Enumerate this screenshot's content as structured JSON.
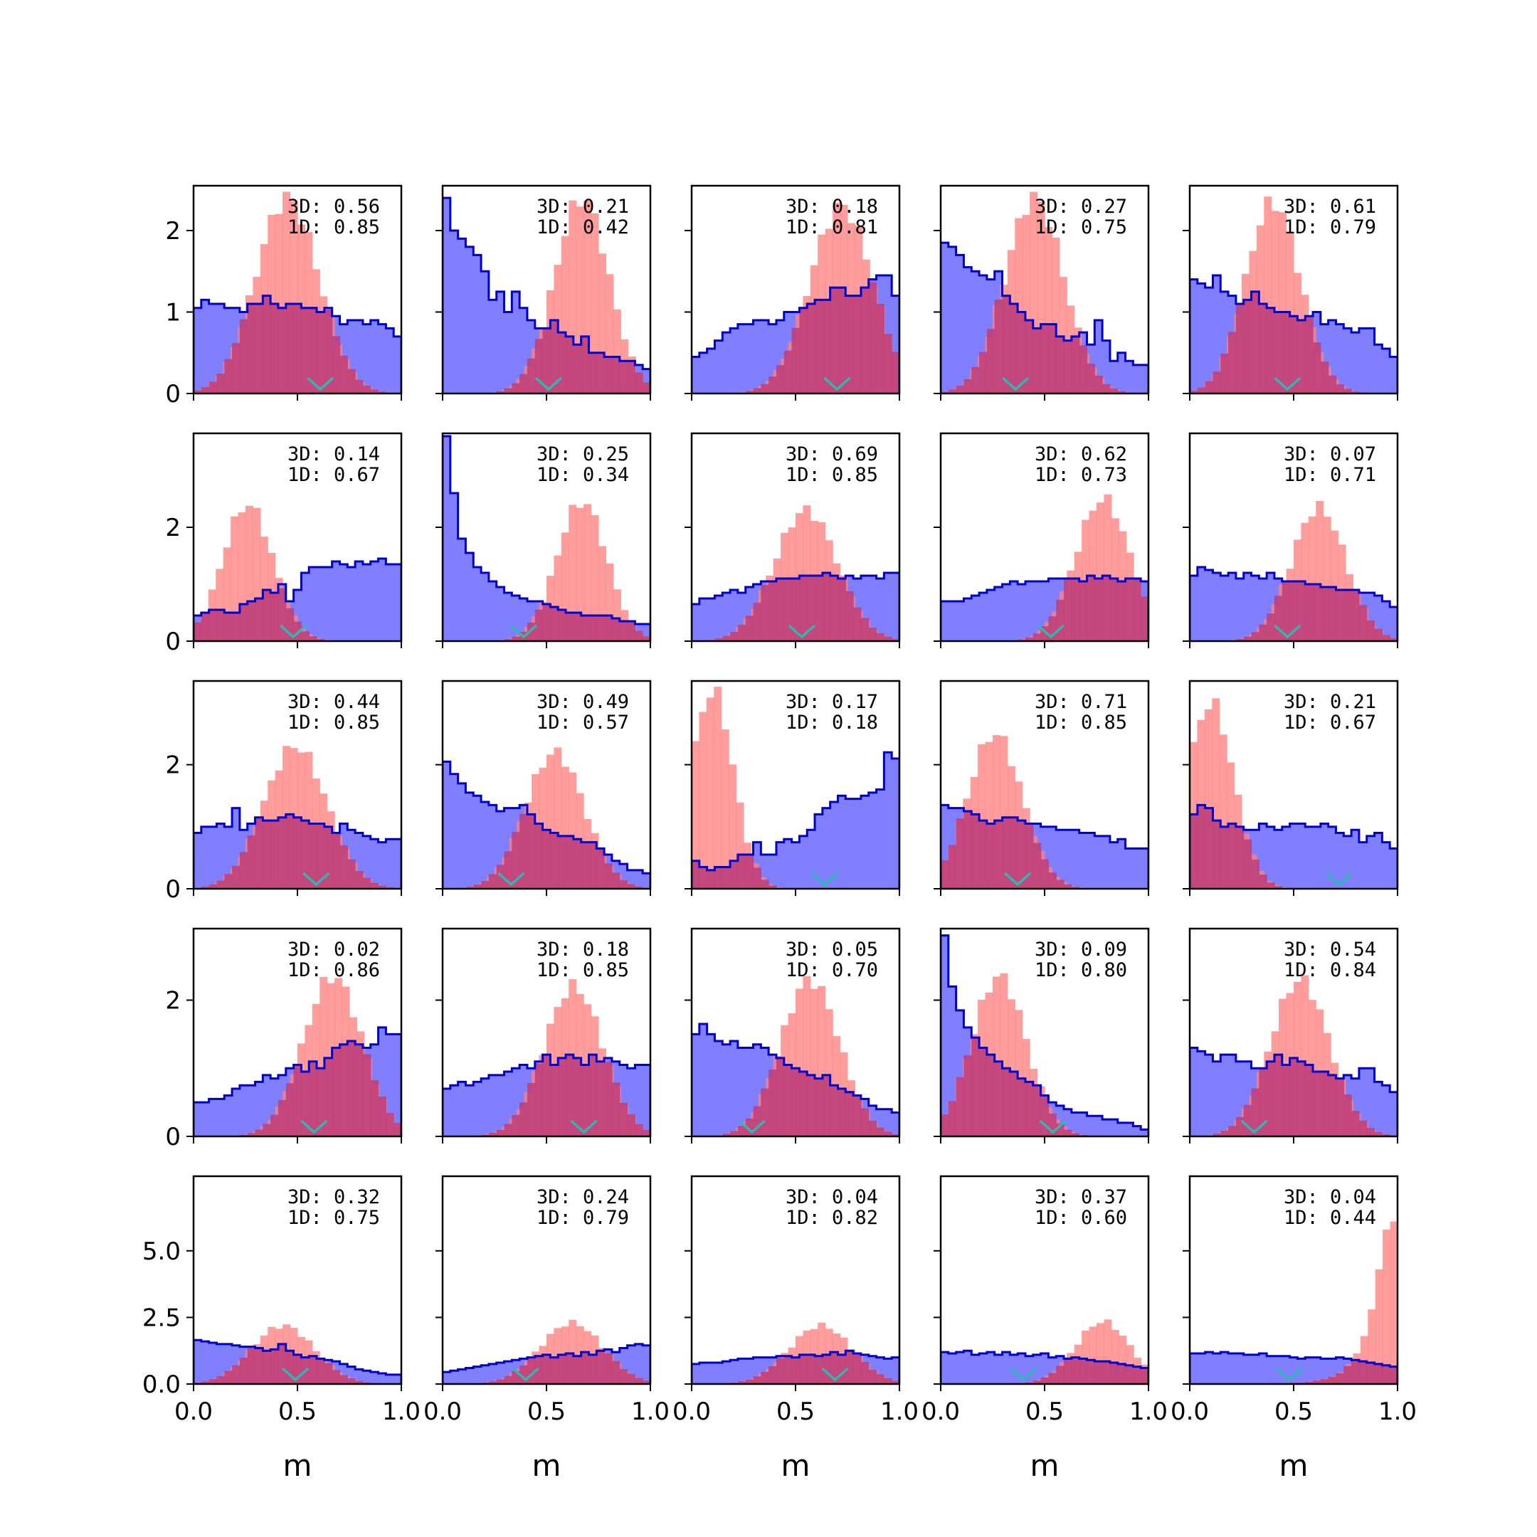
{
  "chart_data": {
    "type": "histogram-grid",
    "rows": 5,
    "cols": 5,
    "xlabel": "m",
    "xlim": [
      0,
      1
    ],
    "xticks": [
      0.0,
      0.5,
      1.0
    ],
    "xtick_labels": [
      "0.0",
      "0.5",
      "1.0"
    ],
    "colors": {
      "red_fill": "#ff8080",
      "blue_fill": "#7f7fff",
      "blue_edge": "#0000cc",
      "overlap": "#c0407a",
      "marker": "#2fb7b0"
    },
    "row_axes": [
      {
        "ylim": [
          0,
          2.55
        ],
        "yticks": [
          0,
          1,
          2
        ],
        "ytick_labels": [
          "0",
          "1",
          "2"
        ]
      },
      {
        "ylim": [
          0,
          3.65
        ],
        "yticks": [
          0,
          2
        ],
        "ytick_labels": [
          "0",
          "2"
        ]
      },
      {
        "ylim": [
          0,
          3.35
        ],
        "yticks": [
          0,
          2
        ],
        "ytick_labels": [
          "0",
          "2"
        ]
      },
      {
        "ylim": [
          0,
          3.05
        ],
        "yticks": [
          0,
          2
        ],
        "ytick_labels": [
          "0",
          "2"
        ]
      },
      {
        "ylim": [
          0,
          7.8
        ],
        "yticks": [
          0,
          2.5,
          5
        ],
        "ytick_labels": [
          "0.0",
          "2.5",
          "5.0"
        ]
      }
    ],
    "panels": [
      {
        "row": 0,
        "col": 0,
        "label_3d": "3D: 0.56",
        "label_1d": "1D: 0.85",
        "red": {
          "type": "gauss",
          "mu": 0.45,
          "sigma": 0.15,
          "peak": 2.4
        },
        "blue": [
          1.05,
          1.15,
          1.1,
          1.1,
          1.05,
          1.05,
          1.0,
          1.1,
          1.1,
          1.2,
          1.1,
          1.05,
          1.1,
          1.1,
          1.05,
          1.05,
          1.0,
          1.05,
          0.95,
          0.85,
          0.9,
          0.9,
          0.85,
          0.9,
          0.85,
          0.8,
          0.7
        ],
        "marker_x": 0.61
      },
      {
        "row": 0,
        "col": 1,
        "label_3d": "3D: 0.21",
        "label_1d": "1D: 0.42",
        "red": {
          "type": "gauss",
          "mu": 0.67,
          "sigma": 0.13,
          "peak": 2.4
        },
        "blue": [
          2.4,
          2.0,
          1.9,
          1.8,
          1.7,
          1.5,
          1.15,
          1.25,
          1.0,
          1.25,
          1.05,
          0.9,
          0.8,
          0.8,
          0.9,
          0.75,
          0.7,
          0.6,
          0.7,
          0.5,
          0.5,
          0.45,
          0.45,
          0.4,
          0.4,
          0.35,
          0.3
        ],
        "marker_x": 0.51
      },
      {
        "row": 0,
        "col": 2,
        "label_3d": "3D: 0.18",
        "label_1d": "1D: 0.81",
        "red": {
          "type": "gauss",
          "mu": 0.72,
          "sigma": 0.15,
          "peak": 2.3
        },
        "blue": [
          0.45,
          0.5,
          0.55,
          0.65,
          0.75,
          0.8,
          0.85,
          0.85,
          0.9,
          0.9,
          0.85,
          0.9,
          1.0,
          1.0,
          1.05,
          1.1,
          1.15,
          1.15,
          1.3,
          1.3,
          1.2,
          1.2,
          1.3,
          1.4,
          1.45,
          1.45,
          1.2
        ],
        "marker_x": 0.7
      },
      {
        "row": 0,
        "col": 3,
        "label_3d": "3D: 0.27",
        "label_1d": "1D: 0.75",
        "red": {
          "type": "gauss",
          "mu": 0.45,
          "sigma": 0.14,
          "peak": 2.4
        },
        "blue": [
          1.85,
          1.8,
          1.7,
          1.55,
          1.5,
          1.45,
          1.4,
          1.5,
          1.2,
          1.1,
          1.0,
          0.9,
          0.8,
          0.85,
          0.85,
          0.7,
          0.65,
          0.7,
          0.75,
          0.6,
          0.9,
          0.65,
          0.4,
          0.5,
          0.4,
          0.35,
          0.35
        ],
        "marker_x": 0.36
      },
      {
        "row": 0,
        "col": 4,
        "label_3d": "3D: 0.61",
        "label_1d": "1D: 0.79",
        "red": {
          "type": "gauss",
          "mu": 0.4,
          "sigma": 0.13,
          "peak": 2.35
        },
        "blue": [
          1.4,
          1.35,
          1.3,
          1.45,
          1.25,
          1.2,
          1.1,
          1.15,
          1.25,
          1.1,
          1.05,
          1.0,
          1.0,
          0.95,
          0.9,
          0.95,
          1.0,
          0.85,
          0.9,
          0.85,
          0.8,
          0.75,
          0.8,
          0.8,
          0.6,
          0.55,
          0.45
        ],
        "marker_x": 0.47
      },
      {
        "row": 1,
        "col": 0,
        "label_3d": "3D: 0.14",
        "label_1d": "1D: 0.67",
        "red": {
          "type": "gauss",
          "mu": 0.26,
          "sigma": 0.12,
          "peak": 2.4
        },
        "blue": [
          0.45,
          0.5,
          0.55,
          0.55,
          0.5,
          0.5,
          0.65,
          0.7,
          0.75,
          0.9,
          0.85,
          1.0,
          0.7,
          0.9,
          1.2,
          1.3,
          1.3,
          1.3,
          1.4,
          1.35,
          1.3,
          1.4,
          1.35,
          1.4,
          1.45,
          1.35,
          1.35
        ],
        "marker_x": 0.48
      },
      {
        "row": 1,
        "col": 1,
        "label_3d": "3D: 0.25",
        "label_1d": "1D: 0.34",
        "red": {
          "type": "gauss",
          "mu": 0.67,
          "sigma": 0.12,
          "peak": 2.45
        },
        "blue": [
          3.6,
          2.6,
          1.8,
          1.55,
          1.3,
          1.2,
          1.05,
          0.95,
          0.85,
          0.8,
          0.75,
          0.7,
          0.7,
          0.65,
          0.6,
          0.55,
          0.5,
          0.5,
          0.45,
          0.45,
          0.45,
          0.45,
          0.4,
          0.35,
          0.35,
          0.3,
          0.3
        ],
        "marker_x": 0.39
      },
      {
        "row": 1,
        "col": 2,
        "label_3d": "3D: 0.69",
        "label_1d": "1D: 0.85",
        "red": {
          "type": "gauss",
          "mu": 0.55,
          "sigma": 0.15,
          "peak": 2.3
        },
        "blue": [
          0.65,
          0.75,
          0.75,
          0.8,
          0.85,
          0.9,
          0.85,
          0.95,
          1.0,
          1.05,
          1.05,
          1.1,
          1.1,
          1.1,
          1.15,
          1.15,
          1.15,
          1.2,
          1.15,
          1.1,
          1.15,
          1.1,
          1.15,
          1.15,
          1.1,
          1.2,
          1.2
        ],
        "marker_x": 0.53
      },
      {
        "row": 1,
        "col": 3,
        "label_3d": "3D: 0.62",
        "label_1d": "1D: 0.73",
        "red": {
          "type": "gauss",
          "mu": 0.78,
          "sigma": 0.13,
          "peak": 2.5
        },
        "blue": [
          0.7,
          0.7,
          0.7,
          0.75,
          0.8,
          0.85,
          0.9,
          0.95,
          1.0,
          1.05,
          1.0,
          1.05,
          1.05,
          1.05,
          1.1,
          1.1,
          1.1,
          1.1,
          1.05,
          1.15,
          1.1,
          1.15,
          1.1,
          1.05,
          1.1,
          1.1,
          1.05
        ],
        "marker_x": 0.53
      },
      {
        "row": 1,
        "col": 4,
        "label_3d": "3D: 0.07",
        "label_1d": "1D: 0.71",
        "red": {
          "type": "gauss",
          "mu": 0.62,
          "sigma": 0.13,
          "peak": 2.35
        },
        "blue": [
          1.15,
          1.3,
          1.25,
          1.2,
          1.15,
          1.2,
          1.1,
          1.2,
          1.15,
          1.1,
          1.2,
          1.1,
          1.05,
          1.05,
          1.05,
          1.0,
          1.0,
          0.95,
          0.95,
          0.9,
          0.9,
          0.9,
          0.85,
          0.85,
          0.8,
          0.7,
          0.6
        ],
        "marker_x": 0.47
      },
      {
        "row": 2,
        "col": 0,
        "label_3d": "3D: 0.44",
        "label_1d": "1D: 0.85",
        "red": {
          "type": "gauss",
          "mu": 0.49,
          "sigma": 0.15,
          "peak": 2.3
        },
        "blue": [
          0.9,
          1.0,
          1.0,
          1.05,
          1.0,
          1.3,
          0.95,
          1.05,
          1.15,
          1.1,
          1.1,
          1.15,
          1.2,
          1.15,
          1.1,
          1.05,
          1.05,
          1.0,
          0.9,
          1.05,
          0.95,
          0.9,
          0.85,
          0.8,
          0.75,
          0.8,
          0.8
        ],
        "marker_x": 0.59
      },
      {
        "row": 2,
        "col": 1,
        "label_3d": "3D: 0.49",
        "label_1d": "1D: 0.57",
        "red": {
          "type": "gauss",
          "mu": 0.54,
          "sigma": 0.14,
          "peak": 2.2
        },
        "blue": [
          2.05,
          1.85,
          1.7,
          1.55,
          1.5,
          1.4,
          1.35,
          1.25,
          1.3,
          1.3,
          1.35,
          1.2,
          1.05,
          0.95,
          0.9,
          0.85,
          0.85,
          0.8,
          0.75,
          0.75,
          0.65,
          0.55,
          0.45,
          0.4,
          0.3,
          0.3,
          0.25
        ],
        "marker_x": 0.33
      },
      {
        "row": 2,
        "col": 2,
        "label_3d": "3D: 0.17",
        "label_1d": "1D: 0.18",
        "red": {
          "type": "gauss",
          "mu": 0.1,
          "sigma": 0.1,
          "peak": 3.2
        },
        "blue": [
          0.45,
          0.35,
          0.3,
          0.35,
          0.35,
          0.45,
          0.55,
          0.55,
          0.75,
          0.55,
          0.55,
          0.75,
          0.8,
          0.75,
          0.85,
          0.95,
          1.2,
          1.3,
          1.4,
          1.5,
          1.45,
          1.45,
          1.5,
          1.55,
          1.6,
          2.2,
          2.1
        ],
        "marker_x": 0.64
      },
      {
        "row": 2,
        "col": 3,
        "label_3d": "3D: 0.71",
        "label_1d": "1D: 0.85",
        "red": {
          "type": "gauss",
          "mu": 0.26,
          "sigma": 0.13,
          "peak": 2.5
        },
        "blue": [
          1.35,
          1.3,
          1.3,
          1.25,
          1.2,
          1.1,
          1.05,
          1.1,
          1.15,
          1.15,
          1.1,
          1.05,
          1.05,
          1.0,
          1.0,
          0.95,
          0.95,
          0.95,
          0.9,
          0.9,
          0.85,
          0.85,
          0.75,
          0.8,
          0.65,
          0.65,
          0.65
        ],
        "marker_x": 0.37
      },
      {
        "row": 2,
        "col": 4,
        "label_3d": "3D: 0.21",
        "label_1d": "1D: 0.67",
        "red": {
          "type": "gauss",
          "mu": 0.1,
          "sigma": 0.11,
          "peak": 3.0
        },
        "blue": [
          1.2,
          1.35,
          1.3,
          1.1,
          1.0,
          1.05,
          1.0,
          0.95,
          0.95,
          1.05,
          1.0,
          0.95,
          1.0,
          1.05,
          1.05,
          1.0,
          1.0,
          1.05,
          1.0,
          0.9,
          0.85,
          0.95,
          0.75,
          0.85,
          0.9,
          0.75,
          0.65
        ],
        "marker_x": 0.72
      },
      {
        "row": 3,
        "col": 0,
        "label_3d": "3D: 0.02",
        "label_1d": "1D: 0.86",
        "red": {
          "type": "gauss",
          "mu": 0.67,
          "sigma": 0.14,
          "peak": 2.35
        },
        "blue": [
          0.5,
          0.5,
          0.55,
          0.55,
          0.6,
          0.7,
          0.75,
          0.75,
          0.8,
          0.9,
          0.85,
          0.9,
          1.0,
          1.05,
          0.95,
          1.1,
          1.0,
          1.15,
          1.3,
          1.35,
          1.4,
          1.35,
          1.3,
          1.35,
          1.6,
          1.5,
          1.5
        ],
        "marker_x": 0.58
      },
      {
        "row": 3,
        "col": 1,
        "label_3d": "3D: 0.18",
        "label_1d": "1D: 0.85",
        "red": {
          "type": "gauss",
          "mu": 0.63,
          "sigma": 0.14,
          "peak": 2.2
        },
        "blue": [
          0.7,
          0.75,
          0.8,
          0.75,
          0.8,
          0.85,
          0.9,
          0.9,
          0.95,
          1.0,
          1.05,
          1.0,
          1.1,
          1.2,
          1.05,
          1.15,
          1.2,
          1.15,
          1.05,
          1.2,
          1.1,
          1.15,
          1.1,
          1.05,
          1.0,
          1.05,
          1.05
        ],
        "marker_x": 0.68
      },
      {
        "row": 3,
        "col": 2,
        "label_3d": "3D: 0.05",
        "label_1d": "1D: 0.70",
        "red": {
          "type": "gauss",
          "mu": 0.57,
          "sigma": 0.14,
          "peak": 2.3
        },
        "blue": [
          1.5,
          1.65,
          1.5,
          1.4,
          1.35,
          1.4,
          1.3,
          1.3,
          1.35,
          1.3,
          1.2,
          1.15,
          1.05,
          1.0,
          0.95,
          0.9,
          0.85,
          0.9,
          0.75,
          0.7,
          0.65,
          0.6,
          0.55,
          0.45,
          0.4,
          0.4,
          0.35
        ],
        "marker_x": 0.29
      },
      {
        "row": 3,
        "col": 3,
        "label_3d": "3D: 0.09",
        "label_1d": "1D: 0.80",
        "red": {
          "type": "gauss",
          "mu": 0.28,
          "sigma": 0.13,
          "peak": 2.35
        },
        "blue": [
          2.95,
          2.2,
          1.85,
          1.6,
          1.45,
          1.3,
          1.2,
          1.1,
          1.0,
          0.95,
          0.85,
          0.8,
          0.75,
          0.6,
          0.5,
          0.45,
          0.4,
          0.35,
          0.35,
          0.3,
          0.3,
          0.25,
          0.25,
          0.2,
          0.2,
          0.15,
          0.1
        ],
        "marker_x": 0.54
      },
      {
        "row": 3,
        "col": 4,
        "label_3d": "3D: 0.54",
        "label_1d": "1D: 0.84",
        "red": {
          "type": "gauss",
          "mu": 0.53,
          "sigma": 0.14,
          "peak": 2.3
        },
        "blue": [
          1.3,
          1.25,
          1.2,
          1.1,
          1.2,
          1.2,
          1.1,
          1.1,
          1.0,
          1.0,
          1.1,
          1.2,
          1.05,
          1.15,
          1.1,
          1.05,
          0.95,
          0.95,
          0.9,
          0.85,
          0.9,
          0.85,
          1.0,
          1.0,
          0.8,
          0.75,
          0.65
        ],
        "marker_x": 0.31
      },
      {
        "row": 4,
        "col": 0,
        "label_3d": "3D: 0.32",
        "label_1d": "1D: 0.75",
        "red": {
          "type": "gauss",
          "mu": 0.43,
          "sigma": 0.15,
          "peak": 2.2
        },
        "blue": [
          1.65,
          1.6,
          1.55,
          1.5,
          1.5,
          1.45,
          1.4,
          1.4,
          1.35,
          1.25,
          1.3,
          1.5,
          1.25,
          1.1,
          1.0,
          1.05,
          0.95,
          0.9,
          0.85,
          0.75,
          0.65,
          0.55,
          0.5,
          0.45,
          0.4,
          0.35,
          0.35
        ],
        "marker_x": 0.49
      },
      {
        "row": 4,
        "col": 1,
        "label_3d": "3D: 0.24",
        "label_1d": "1D: 0.79",
        "red": {
          "type": "gauss",
          "mu": 0.62,
          "sigma": 0.15,
          "peak": 2.3
        },
        "blue": [
          0.45,
          0.5,
          0.55,
          0.6,
          0.65,
          0.7,
          0.75,
          0.8,
          0.85,
          0.9,
          0.95,
          1.0,
          1.05,
          1.1,
          1.0,
          1.1,
          1.15,
          1.05,
          1.2,
          1.1,
          1.25,
          1.3,
          1.2,
          1.35,
          1.45,
          1.5,
          1.45
        ],
        "marker_x": 0.4
      },
      {
        "row": 4,
        "col": 2,
        "label_3d": "3D: 0.04",
        "label_1d": "1D: 0.82",
        "red": {
          "type": "gauss",
          "mu": 0.62,
          "sigma": 0.15,
          "peak": 2.2
        },
        "blue": [
          0.75,
          0.8,
          0.8,
          0.8,
          0.85,
          0.9,
          0.95,
          0.95,
          1.0,
          1.0,
          1.0,
          1.05,
          1.05,
          1.0,
          1.1,
          1.1,
          1.05,
          1.1,
          1.2,
          1.1,
          1.25,
          1.15,
          1.1,
          1.05,
          1.0,
          0.95,
          1.0
        ],
        "marker_x": 0.69
      },
      {
        "row": 4,
        "col": 3,
        "label_3d": "3D: 0.37",
        "label_1d": "1D: 0.60",
        "red": {
          "type": "gauss",
          "mu": 0.78,
          "sigma": 0.13,
          "peak": 2.35
        },
        "blue": [
          1.2,
          1.15,
          1.2,
          1.25,
          1.1,
          1.15,
          1.2,
          1.1,
          1.2,
          1.1,
          1.15,
          1.05,
          1.1,
          1.15,
          1.0,
          1.05,
          0.95,
          1.0,
          0.95,
          0.9,
          0.85,
          0.85,
          0.8,
          0.75,
          0.7,
          0.65,
          0.6
        ],
        "marker_x": 0.4
      },
      {
        "row": 4,
        "col": 4,
        "label_3d": "3D: 0.04",
        "label_1d": "1D: 0.44",
        "red": {
          "type": "values",
          "values": [
            0,
            0,
            0,
            0,
            0,
            0,
            0,
            0,
            0,
            0,
            0,
            0,
            0,
            0.05,
            0.05,
            0.05,
            0.1,
            0.15,
            0.2,
            0.3,
            0.45,
            0.75,
            1.15,
            1.8,
            2.8,
            4.3,
            5.8,
            6.1
          ]
        },
        "blue": [
          1.15,
          1.15,
          1.2,
          1.15,
          1.2,
          1.15,
          1.15,
          1.1,
          1.1,
          1.15,
          1.05,
          1.05,
          1.05,
          1.0,
          0.95,
          1.0,
          1.0,
          0.95,
          0.95,
          1.0,
          0.95,
          0.9,
          0.85,
          0.8,
          0.75,
          0.7,
          0.65
        ],
        "marker_x": 0.48
      }
    ]
  }
}
